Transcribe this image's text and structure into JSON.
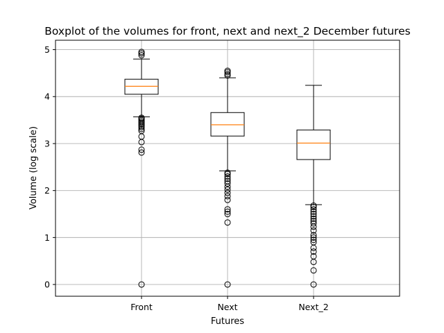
{
  "chart_data": {
    "type": "boxplot",
    "title": "Boxplot of the volumes for front, next and next_2 December futures",
    "xlabel": "Futures",
    "ylabel": "Volume (log scale)",
    "categories": [
      "Front",
      "Next",
      "Next_2"
    ],
    "ylim": [
      -0.25,
      5.2
    ],
    "yticks": [
      "0",
      "1",
      "2",
      "3",
      "4",
      "5"
    ],
    "grid": true,
    "colors": {
      "box": "#000000",
      "median": "#ff7f0e",
      "grid": "#b0b0b0"
    },
    "boxes": [
      {
        "label": "Front",
        "whisker_low": 3.57,
        "q1": 4.05,
        "median": 4.22,
        "q3": 4.37,
        "whisker_high": 4.8,
        "outliers": [
          0,
          2.81,
          2.87,
          3.03,
          3.15,
          3.27,
          3.31,
          3.35,
          3.38,
          3.41,
          3.44,
          3.47,
          3.5,
          3.53,
          3.55,
          4.88,
          4.92,
          4.95
        ]
      },
      {
        "label": "Next",
        "whisker_low": 2.42,
        "q1": 3.16,
        "median": 3.4,
        "q3": 3.66,
        "whisker_high": 4.4,
        "outliers": [
          0,
          1.32,
          1.5,
          1.55,
          1.6,
          1.8,
          1.88,
          1.95,
          2.02,
          2.08,
          2.15,
          2.2,
          2.25,
          2.3,
          2.35,
          2.38,
          4.45,
          4.48,
          4.52,
          4.55
        ]
      },
      {
        "label": "Next_2",
        "whisker_low": 1.7,
        "q1": 2.66,
        "median": 3.01,
        "q3": 3.29,
        "whisker_high": 4.24,
        "outliers": [
          0,
          0.3,
          0.48,
          0.6,
          0.7,
          0.78,
          0.9,
          0.95,
          1.0,
          1.05,
          1.15,
          1.23,
          1.3,
          1.35,
          1.4,
          1.45,
          1.5,
          1.55,
          1.6,
          1.65,
          1.68
        ]
      }
    ]
  }
}
